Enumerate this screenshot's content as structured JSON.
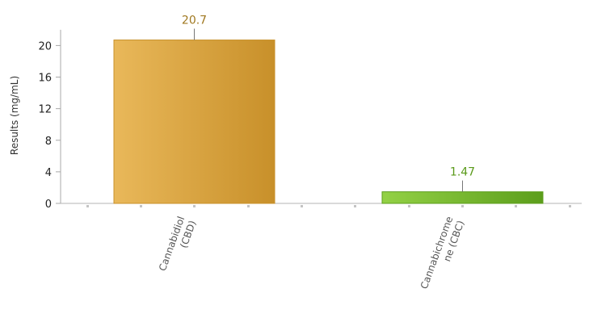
{
  "chart_data": {
    "type": "bar",
    "ylabel": "Results (mg/mL)",
    "xlabel": "",
    "ylim": [
      0,
      22
    ],
    "yticks": [
      0,
      4,
      8,
      12,
      16,
      20
    ],
    "categories": [
      {
        "lines": [
          "Cannabidiol",
          "(CBD)"
        ]
      },
      {
        "lines": [
          "Cannabichrome",
          "ne (CBC)"
        ]
      }
    ],
    "values": [
      20.7,
      1.47
    ],
    "value_labels": [
      "20.7",
      "1.47"
    ],
    "colors": [
      {
        "light": "#e9b85a",
        "dark": "#c8902a",
        "label": "#a07820"
      },
      {
        "light": "#93d145",
        "dark": "#5c9e1c",
        "label": "#5a9a1a"
      }
    ],
    "grid": false,
    "legend": "none"
  }
}
